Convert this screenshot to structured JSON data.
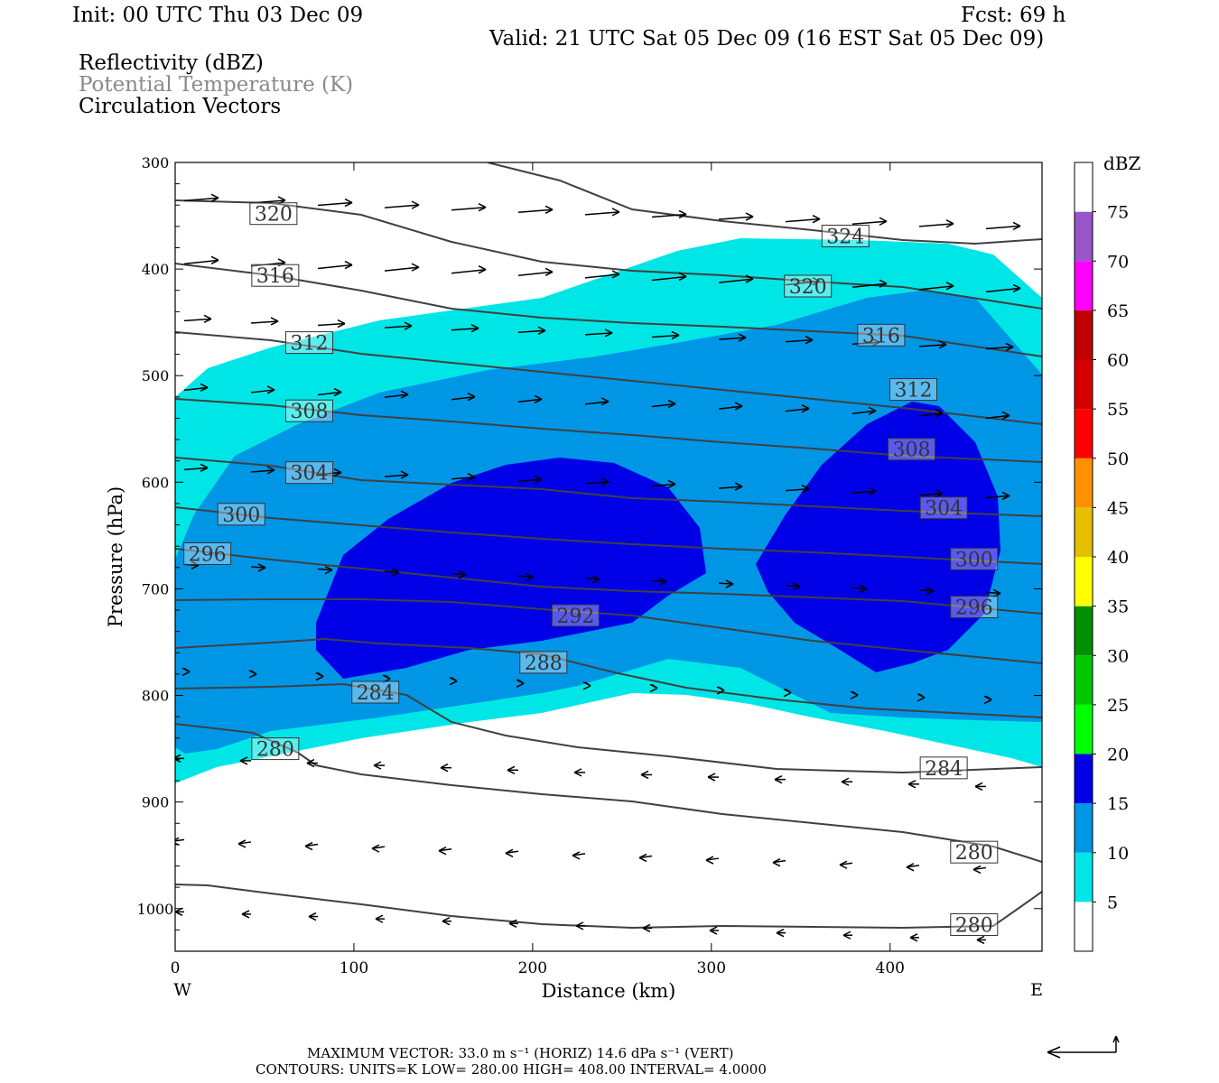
{
  "header": {
    "init": "Init: 00 UTC Thu 03 Dec 09",
    "fcst": "Fcst:   69 h",
    "valid": "Valid: 21 UTC Sat 05 Dec 09 (16 EST Sat 05 Dec 09)"
  },
  "fields": [
    "Reflectivity (dBZ)",
    "Potential Temperature (K)",
    "Circulation Vectors"
  ],
  "footer": {
    "vector_line": "MAXIMUM VECTOR:  33.0 m s⁻¹ (HORIZ)          14.6 dPa s⁻¹ (VERT)",
    "contour_line": "CONTOURS:  UNITS=K  LOW=  280.00        HIGH=  408.00        INTERVAL=     4.0000"
  },
  "chart_data": {
    "type": "cross-section",
    "xlabel": "Distance (km)",
    "ylabel": "Pressure (hPa)",
    "xlim": [
      0,
      485
    ],
    "ylim": [
      1040,
      300
    ],
    "x_ticks": [
      "0",
      "100",
      "200",
      "300",
      "400"
    ],
    "y_ticks": [
      "300",
      "400",
      "500",
      "600",
      "700",
      "800",
      "900",
      "1000"
    ],
    "x_end_labels": {
      "left": "W",
      "right": "E"
    },
    "colorbar": {
      "title": "dBZ",
      "labels": [
        "5",
        "10",
        "15",
        "20",
        "25",
        "30",
        "35",
        "40",
        "45",
        "50",
        "55",
        "60",
        "65",
        "70",
        "75"
      ],
      "colors": [
        "#ffffff",
        "#00e6e6",
        "#0096e6",
        "#0000e6",
        "#00ff00",
        "#00c800",
        "#009100",
        "#ffff00",
        "#e6c000",
        "#ff9100",
        "#ff0000",
        "#d70000",
        "#c00000",
        "#ff00ff",
        "#9955c9",
        "#ffffff"
      ]
    },
    "reflectivity_colors": {
      "5": "#00e6e6",
      "10": "#0096e6",
      "15": "#0000e6"
    },
    "contour_color": "#404040",
    "theta_contours": [
      {
        "label": "320",
        "label_at": [
          55,
          348
        ]
      },
      {
        "label": "324",
        "label_at": [
          375,
          369
        ]
      },
      {
        "label": "316",
        "label_at": [
          56,
          406
        ]
      },
      {
        "label": "320",
        "label_at": [
          354,
          416
        ]
      },
      {
        "label": "312",
        "label_at": [
          75,
          469
        ]
      },
      {
        "label": "316",
        "label_at": [
          395,
          462
        ]
      },
      {
        "label": "312",
        "label_at": [
          413,
          513
        ]
      },
      {
        "label": "308",
        "label_at": [
          75,
          533
        ]
      },
      {
        "label": "308",
        "label_at": [
          412,
          569
        ]
      },
      {
        "label": "304",
        "label_at": [
          75,
          591
        ]
      },
      {
        "label": "304",
        "label_at": [
          430,
          624
        ]
      },
      {
        "label": "300",
        "label_at": [
          37,
          630
        ]
      },
      {
        "label": "296",
        "label_at": [
          18,
          667
        ]
      },
      {
        "label": "300",
        "label_at": [
          447,
          672
        ]
      },
      {
        "label": "292",
        "label_at": [
          224,
          725
        ]
      },
      {
        "label": "296",
        "label_at": [
          447,
          717
        ]
      },
      {
        "label": "288",
        "label_at": [
          206,
          769
        ]
      },
      {
        "label": "284",
        "label_at": [
          112,
          797
        ]
      },
      {
        "label": "280",
        "label_at": [
          56,
          850
        ]
      },
      {
        "label": "284",
        "label_at": [
          430,
          868
        ]
      },
      {
        "label": "280",
        "label_at": [
          447,
          947
        ]
      },
      {
        "label": "280",
        "label_at": [
          447,
          1015
        ]
      }
    ]
  }
}
